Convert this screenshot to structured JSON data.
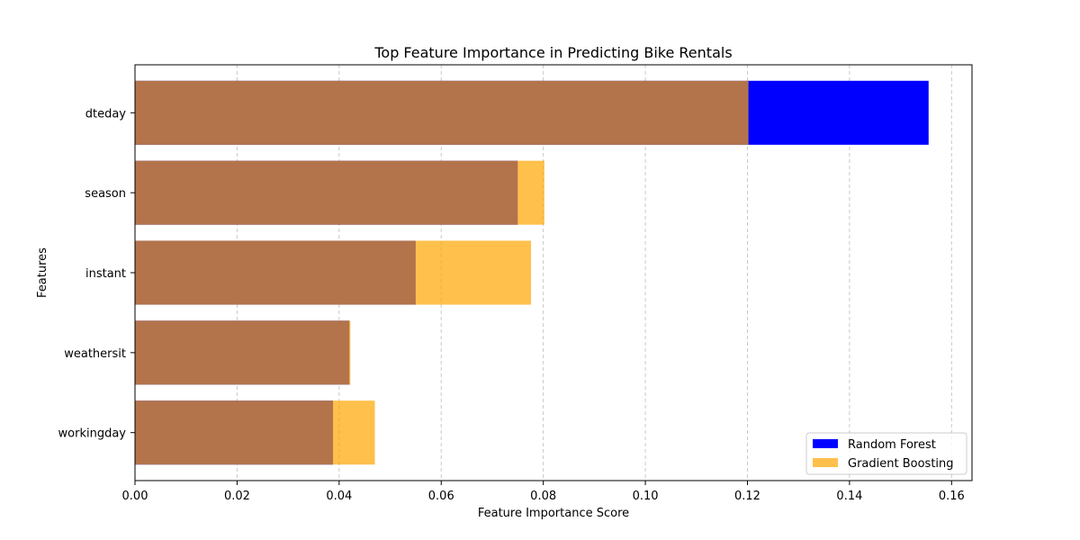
{
  "chart_data": {
    "type": "bar",
    "orientation": "horizontal",
    "title": "Top Feature Importance in Predicting Bike Rentals",
    "xlabel": "Feature Importance Score",
    "ylabel": "Features",
    "categories": [
      "dteday",
      "season",
      "instant",
      "weathersit",
      "workingday"
    ],
    "series": [
      {
        "name": "Random Forest",
        "color": "#0000ff",
        "values": [
          0.1555,
          0.075,
          0.055,
          0.042,
          0.0388
        ]
      },
      {
        "name": "Gradient Boosting",
        "color": "#ffa500",
        "opacity": 0.7,
        "values": [
          0.1202,
          0.0802,
          0.0776,
          0.0422,
          0.047
        ]
      }
    ],
    "xlim": [
      0,
      0.164
    ],
    "xticks": [
      "0.00",
      "0.02",
      "0.04",
      "0.06",
      "0.08",
      "0.10",
      "0.12",
      "0.14",
      "0.16"
    ],
    "grid": "x-dashed",
    "legend": "lower-right"
  }
}
